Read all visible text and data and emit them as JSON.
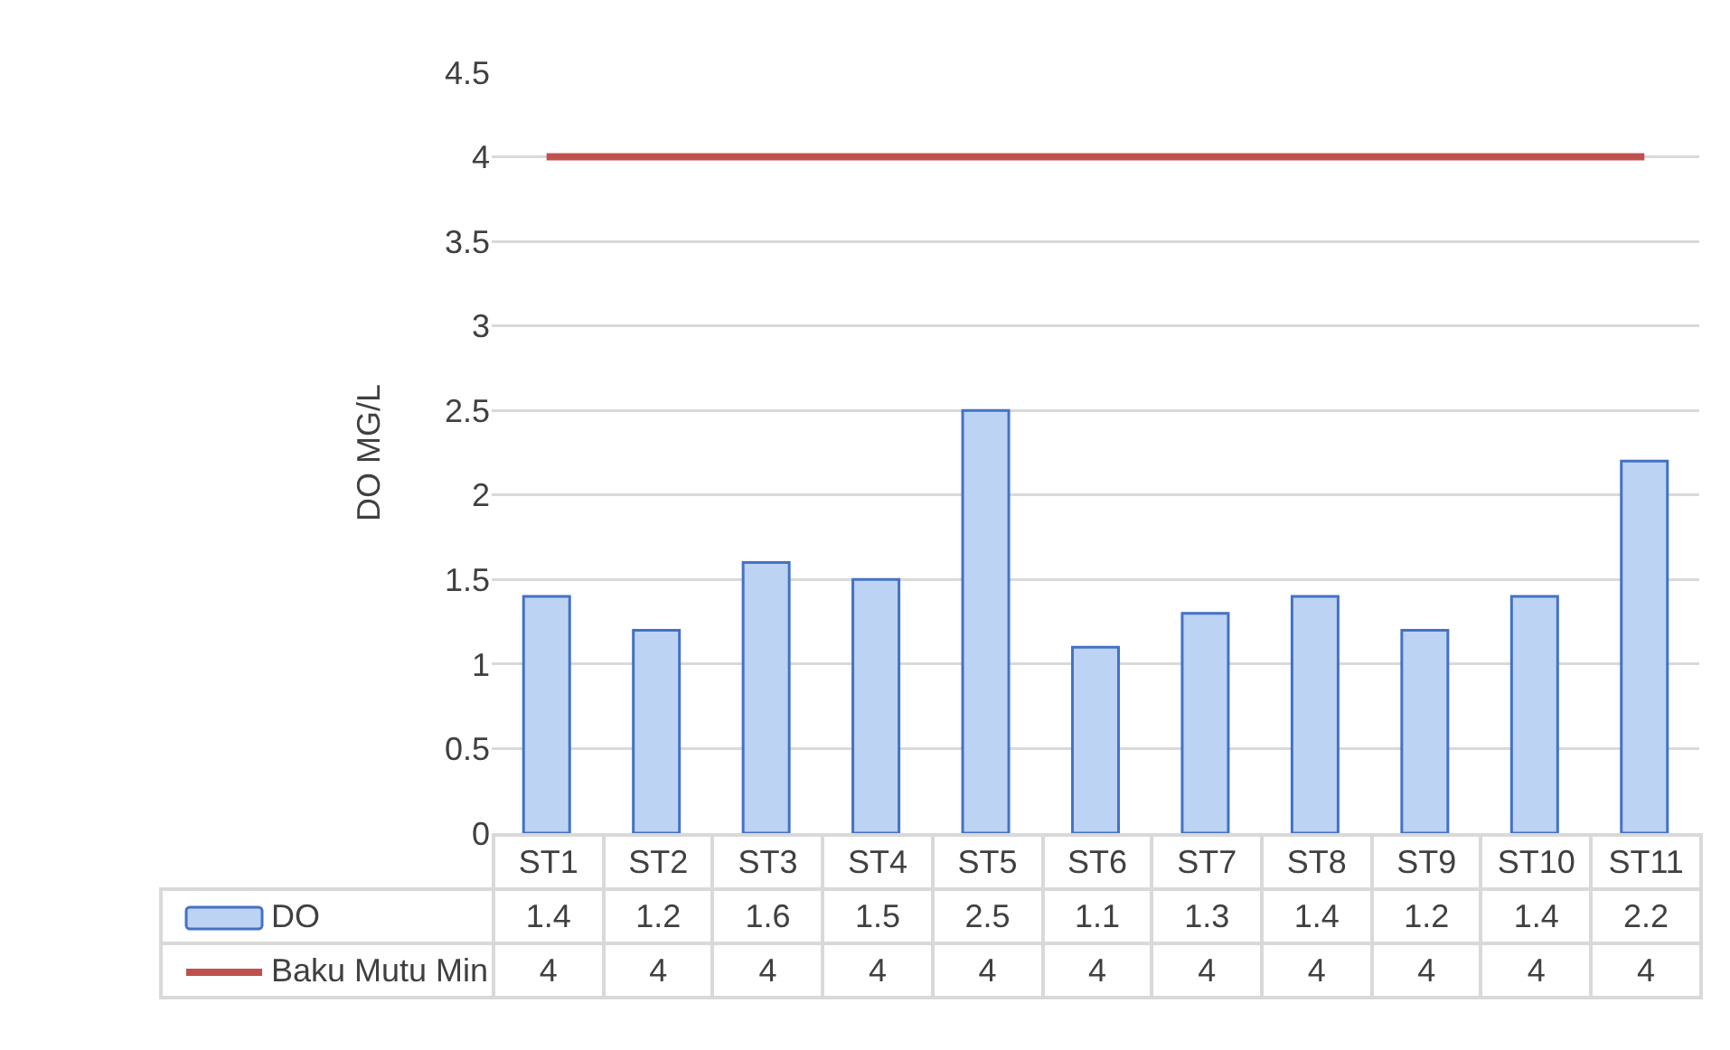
{
  "chart_data": {
    "type": "bar",
    "ylabel": "DO MG/L",
    "categories": [
      "ST1",
      "ST2",
      "ST3",
      "ST4",
      "ST5",
      "ST6",
      "ST7",
      "ST8",
      "ST9",
      "ST10",
      "ST11"
    ],
    "series": [
      {
        "name": "DO",
        "color": "#bcd3f4",
        "values": [
          1.4,
          1.2,
          1.6,
          1.5,
          2.5,
          1.1,
          1.3,
          1.4,
          1.2,
          1.4,
          2.2
        ]
      },
      {
        "name": "Baku Mutu Min",
        "type": "line",
        "color": "#c0504d",
        "values": [
          4,
          4,
          4,
          4,
          4,
          4,
          4,
          4,
          4,
          4,
          4
        ]
      }
    ],
    "ylim": [
      0,
      4.5
    ],
    "yticks": [
      0,
      0.5,
      1,
      1.5,
      2,
      2.5,
      3,
      3.5,
      4,
      4.5
    ],
    "grid": "y",
    "legend": "bottom",
    "data_labels": true
  }
}
